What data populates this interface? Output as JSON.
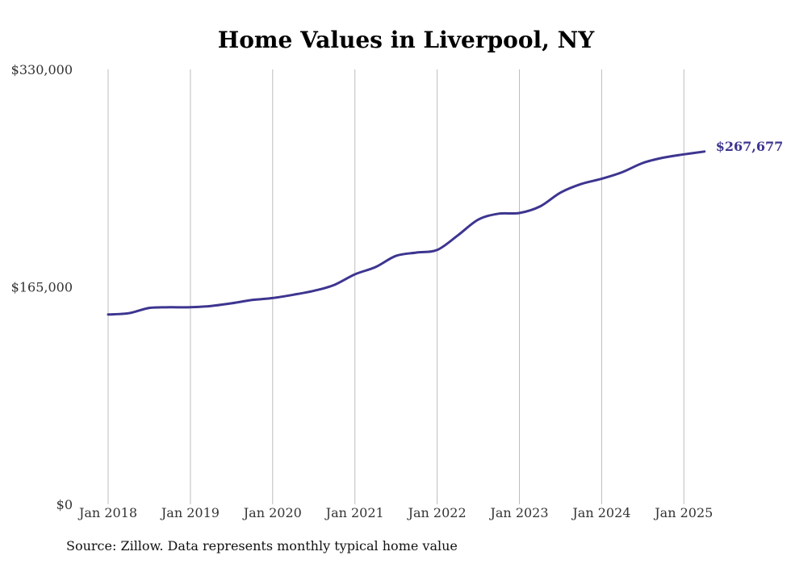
{
  "chart_data": {
    "type": "line",
    "title": "Home Values in Liverpool, NY",
    "xlabel": "",
    "ylabel": "",
    "ylim": [
      0,
      330000
    ],
    "y_ticks": [
      {
        "value": 0,
        "label": "$0"
      },
      {
        "value": 165000,
        "label": "$165,000"
      },
      {
        "value": 330000,
        "label": "$330,000"
      }
    ],
    "x_ticks": [
      {
        "value": "2018-01",
        "label": "Jan 2018"
      },
      {
        "value": "2019-01",
        "label": "Jan 2019"
      },
      {
        "value": "2020-01",
        "label": "Jan 2020"
      },
      {
        "value": "2021-01",
        "label": "Jan 2021"
      },
      {
        "value": "2022-01",
        "label": "Jan 2022"
      },
      {
        "value": "2023-01",
        "label": "Jan 2023"
      },
      {
        "value": "2024-01",
        "label": "Jan 2024"
      },
      {
        "value": "2025-01",
        "label": "Jan 2025"
      }
    ],
    "grid": "vertical",
    "legend": "none",
    "series": [
      {
        "color": "#3d3590",
        "end_label": "$267,677",
        "points": [
          {
            "x": "2018-01",
            "y": 144000
          },
          {
            "x": "2018-04",
            "y": 145000
          },
          {
            "x": "2018-07",
            "y": 149000
          },
          {
            "x": "2018-10",
            "y": 149500
          },
          {
            "x": "2019-01",
            "y": 149500
          },
          {
            "x": "2019-04",
            "y": 150500
          },
          {
            "x": "2019-07",
            "y": 152500
          },
          {
            "x": "2019-10",
            "y": 155000
          },
          {
            "x": "2020-01",
            "y": 156500
          },
          {
            "x": "2020-04",
            "y": 159000
          },
          {
            "x": "2020-07",
            "y": 162000
          },
          {
            "x": "2020-10",
            "y": 166500
          },
          {
            "x": "2021-01",
            "y": 174500
          },
          {
            "x": "2021-04",
            "y": 180000
          },
          {
            "x": "2021-07",
            "y": 188500
          },
          {
            "x": "2021-10",
            "y": 191000
          },
          {
            "x": "2022-01",
            "y": 193000
          },
          {
            "x": "2022-04",
            "y": 204000
          },
          {
            "x": "2022-07",
            "y": 216000
          },
          {
            "x": "2022-10",
            "y": 220500
          },
          {
            "x": "2023-01",
            "y": 221000
          },
          {
            "x": "2023-04",
            "y": 226000
          },
          {
            "x": "2023-07",
            "y": 236500
          },
          {
            "x": "2023-10",
            "y": 243000
          },
          {
            "x": "2024-01",
            "y": 247000
          },
          {
            "x": "2024-04",
            "y": 252000
          },
          {
            "x": "2024-07",
            "y": 259000
          },
          {
            "x": "2024-10",
            "y": 263000
          },
          {
            "x": "2025-01",
            "y": 265500
          },
          {
            "x": "2025-04",
            "y": 267677
          }
        ]
      }
    ]
  },
  "source_note": "Source: Zillow. Data represents monthly typical home value"
}
